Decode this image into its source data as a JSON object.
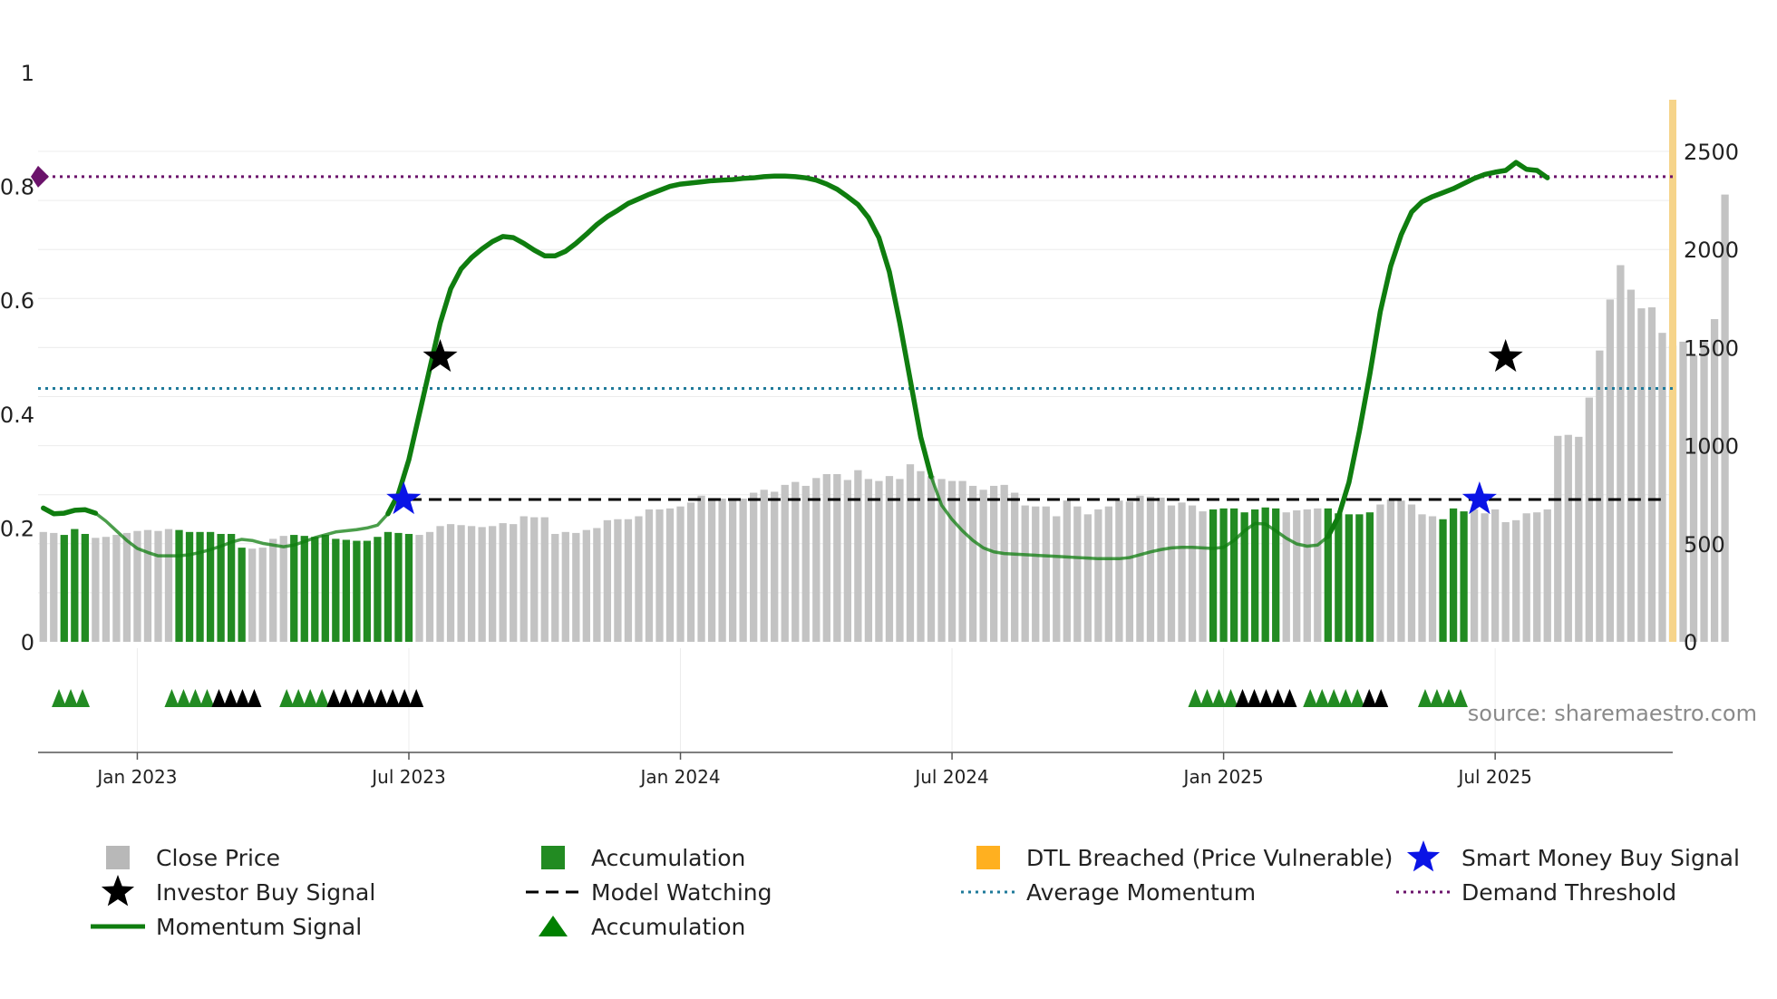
{
  "chart_data": {
    "type": "bar+line",
    "source": "source: sharemaestro.com",
    "left_axis": {
      "ylim": [
        0,
        1
      ],
      "ticks": [
        0,
        0.2,
        0.4,
        0.6,
        0.8,
        1
      ],
      "tick_labels": [
        "0",
        "0.2",
        "0.4",
        "0.6",
        "0.8",
        "1"
      ]
    },
    "right_axis": {
      "ylim": [
        0,
        2800
      ],
      "ticks": [
        0,
        500,
        1000,
        1500,
        2000,
        2500
      ],
      "tick_labels": [
        "0",
        "500",
        "1000",
        "1500",
        "2000",
        "2500"
      ]
    },
    "x_ticks": [
      {
        "label": "Jan 2023",
        "week": 9
      },
      {
        "label": "Jul 2023",
        "week": 35
      },
      {
        "label": "Jan 2024",
        "week": 61
      },
      {
        "label": "Jul 2024",
        "week": 87
      },
      {
        "label": "Jan 2025",
        "week": 113
      },
      {
        "label": "Jul 2025",
        "week": 139
      }
    ],
    "week_count": 156,
    "close_price": [
      560,
      555,
      545,
      575,
      550,
      530,
      535,
      545,
      555,
      565,
      570,
      565,
      575,
      570,
      560,
      560,
      560,
      550,
      550,
      480,
      475,
      480,
      525,
      540,
      545,
      540,
      535,
      545,
      525,
      520,
      515,
      515,
      535,
      560,
      555,
      550,
      545,
      560,
      590,
      600,
      595,
      590,
      585,
      590,
      605,
      600,
      640,
      635,
      635,
      550,
      560,
      555,
      570,
      580,
      620,
      625,
      625,
      640,
      675,
      675,
      680,
      690,
      710,
      745,
      725,
      730,
      720,
      730,
      760,
      775,
      765,
      800,
      815,
      795,
      835,
      855,
      855,
      825,
      875,
      830,
      820,
      845,
      830,
      905,
      870,
      845,
      830,
      820,
      820,
      795,
      775,
      795,
      800,
      760,
      695,
      690,
      690,
      640,
      720,
      690,
      650,
      675,
      690,
      720,
      715,
      745,
      740,
      735,
      695,
      710,
      695,
      665,
      675,
      680,
      680,
      660,
      675,
      685,
      680,
      660,
      670,
      675,
      680,
      680,
      655,
      650,
      650,
      660,
      700,
      725,
      720,
      700,
      650,
      640,
      625,
      680,
      665,
      675,
      655,
      675,
      610,
      620,
      655,
      660,
      675,
      1050,
      1055,
      1045,
      1245,
      1485,
      1745,
      1920,
      1795,
      1700,
      1705,
      1575,
      1510,
      1530,
      1460,
      1535,
      1645,
      2280
    ],
    "accumulation_bar_ranges": [
      [
        2,
        4
      ],
      [
        13,
        19
      ],
      [
        24,
        35
      ],
      [
        112,
        118
      ],
      [
        123,
        127
      ],
      [
        134,
        136
      ]
    ],
    "momentum": {
      "points": [
        [
          0,
          0.235
        ],
        [
          1,
          0.225
        ],
        [
          2,
          0.226
        ],
        [
          3,
          0.231
        ],
        [
          4,
          0.232
        ],
        [
          5,
          0.226
        ],
        [
          6,
          0.212
        ],
        [
          7,
          0.195
        ],
        [
          8,
          0.178
        ],
        [
          9,
          0.164
        ],
        [
          10,
          0.157
        ],
        [
          11,
          0.151
        ],
        [
          12,
          0.151
        ],
        [
          13,
          0.151
        ],
        [
          14,
          0.153
        ],
        [
          15,
          0.157
        ],
        [
          16,
          0.162
        ],
        [
          17,
          0.168
        ],
        [
          18,
          0.175
        ],
        [
          19,
          0.18
        ],
        [
          20,
          0.178
        ],
        [
          21,
          0.173
        ],
        [
          22,
          0.17
        ],
        [
          23,
          0.167
        ],
        [
          24,
          0.17
        ],
        [
          25,
          0.176
        ],
        [
          26,
          0.183
        ],
        [
          27,
          0.188
        ],
        [
          28,
          0.193
        ],
        [
          29,
          0.195
        ],
        [
          30,
          0.197
        ],
        [
          31,
          0.2
        ],
        [
          32,
          0.205
        ],
        [
          33,
          0.225
        ],
        [
          34,
          0.26
        ],
        [
          35,
          0.32
        ],
        [
          36,
          0.4
        ],
        [
          37,
          0.48
        ],
        [
          38,
          0.56
        ],
        [
          39,
          0.62
        ],
        [
          40,
          0.655
        ],
        [
          41,
          0.675
        ],
        [
          42,
          0.69
        ],
        [
          43,
          0.703
        ],
        [
          44,
          0.712
        ],
        [
          45,
          0.71
        ],
        [
          46,
          0.7
        ],
        [
          47,
          0.688
        ],
        [
          48,
          0.678
        ],
        [
          49,
          0.678
        ],
        [
          50,
          0.686
        ],
        [
          51,
          0.7
        ],
        [
          52,
          0.716
        ],
        [
          53,
          0.733
        ],
        [
          54,
          0.747
        ],
        [
          55,
          0.758
        ],
        [
          56,
          0.77
        ],
        [
          57,
          0.778
        ],
        [
          58,
          0.786
        ],
        [
          59,
          0.793
        ],
        [
          60,
          0.8
        ],
        [
          61,
          0.804
        ],
        [
          62,
          0.806
        ],
        [
          63,
          0.808
        ],
        [
          64,
          0.81
        ],
        [
          65,
          0.811
        ],
        [
          66,
          0.812
        ],
        [
          67,
          0.814
        ],
        [
          68,
          0.815
        ],
        [
          69,
          0.817
        ],
        [
          70,
          0.818
        ],
        [
          71,
          0.818
        ],
        [
          72,
          0.817
        ],
        [
          73,
          0.815
        ],
        [
          74,
          0.811
        ],
        [
          75,
          0.804
        ],
        [
          76,
          0.795
        ],
        [
          77,
          0.782
        ],
        [
          78,
          0.768
        ],
        [
          79,
          0.745
        ],
        [
          80,
          0.71
        ],
        [
          81,
          0.65
        ],
        [
          82,
          0.56
        ],
        [
          83,
          0.46
        ],
        [
          84,
          0.36
        ],
        [
          85,
          0.29
        ],
        [
          86,
          0.24
        ],
        [
          87,
          0.215
        ],
        [
          88,
          0.195
        ],
        [
          89,
          0.178
        ],
        [
          90,
          0.165
        ],
        [
          91,
          0.158
        ],
        [
          92,
          0.155
        ],
        [
          93,
          0.154
        ],
        [
          94,
          0.153
        ],
        [
          95,
          0.152
        ],
        [
          96,
          0.151
        ],
        [
          97,
          0.15
        ],
        [
          98,
          0.149
        ],
        [
          99,
          0.148
        ],
        [
          100,
          0.147
        ],
        [
          101,
          0.146
        ],
        [
          102,
          0.146
        ],
        [
          103,
          0.146
        ],
        [
          104,
          0.148
        ],
        [
          105,
          0.153
        ],
        [
          106,
          0.158
        ],
        [
          107,
          0.162
        ],
        [
          108,
          0.165
        ],
        [
          109,
          0.166
        ],
        [
          110,
          0.166
        ],
        [
          111,
          0.165
        ],
        [
          112,
          0.164
        ],
        [
          113,
          0.166
        ],
        [
          114,
          0.178
        ],
        [
          115,
          0.195
        ],
        [
          116,
          0.208
        ],
        [
          117,
          0.207
        ],
        [
          118,
          0.195
        ],
        [
          119,
          0.182
        ],
        [
          120,
          0.172
        ],
        [
          121,
          0.168
        ],
        [
          122,
          0.17
        ],
        [
          123,
          0.185
        ],
        [
          124,
          0.22
        ],
        [
          125,
          0.28
        ],
        [
          126,
          0.37
        ],
        [
          127,
          0.47
        ],
        [
          128,
          0.58
        ],
        [
          129,
          0.66
        ],
        [
          130,
          0.715
        ],
        [
          131,
          0.755
        ],
        [
          132,
          0.773
        ],
        [
          133,
          0.782
        ],
        [
          134,
          0.789
        ],
        [
          135,
          0.796
        ],
        [
          136,
          0.805
        ],
        [
          137,
          0.814
        ],
        [
          138,
          0.821
        ],
        [
          139,
          0.825
        ],
        [
          140,
          0.828
        ],
        [
          141,
          0.842
        ],
        [
          142,
          0.83
        ],
        [
          143,
          0.828
        ],
        [
          144,
          0.815
        ]
      ],
      "dim_ranges": [
        [
          5,
          34
        ],
        [
          85,
          124
        ]
      ]
    },
    "model_watching": {
      "y": 0.25,
      "x_ranges": [
        [
          35,
          125
        ],
        [
          125,
          155
        ]
      ]
    },
    "average_momentum": 0.445,
    "demand_threshold": 0.817,
    "investor_buy_signals": [
      {
        "week": 38,
        "y": 0.5
      },
      {
        "week": 140,
        "y": 0.5
      }
    ],
    "smart_money_buy_signals": [
      {
        "week": 34.5,
        "y": 0.25
      },
      {
        "week": 137.5,
        "y": 0.25
      }
    ],
    "dtl_breached_bar_week": 156,
    "triangle_groups": [
      {
        "start": 1.5,
        "green": 3,
        "black": 0
      },
      {
        "start": 12.3,
        "green": 4,
        "black": 4
      },
      {
        "start": 23.3,
        "green": 4,
        "black": 8
      },
      {
        "start": 110.3,
        "green": 4,
        "black": 5
      },
      {
        "start": 121.3,
        "green": 5,
        "black": 2
      },
      {
        "start": 132.3,
        "green": 4,
        "black": 0
      }
    ],
    "colors": {
      "close_price": "#c3c3c3",
      "accumulation": "#228b22",
      "dtl": "#f6d48a",
      "momentum": "#0f7d0f",
      "average_momentum": "#1f7a9a",
      "demand_threshold": "#6b136b",
      "smart_money": "#0a14e6",
      "investor": "#000000",
      "model_watching": "#000000"
    },
    "legend": [
      {
        "label": "Close Price",
        "symbol": "square",
        "color": "#b8b8b8"
      },
      {
        "label": "Accumulation",
        "symbol": "square",
        "color": "#228b22"
      },
      {
        "label": "DTL Breached (Price Vulnerable)",
        "symbol": "square",
        "color": "#ffb020"
      },
      {
        "label": "Smart Money Buy Signal",
        "symbol": "star",
        "color": "#0a14e6"
      },
      {
        "label": "Investor Buy Signal",
        "symbol": "star",
        "color": "#000000"
      },
      {
        "label": "Model Watching",
        "symbol": "dash",
        "color": "#000000"
      },
      {
        "label": "Average Momentum",
        "symbol": "dot",
        "color": "#1f7a9a"
      },
      {
        "label": "Demand Threshold",
        "symbol": "dot",
        "color": "#6b136b"
      },
      {
        "label": "Momentum Signal",
        "symbol": "line",
        "color": "#0f7d0f"
      },
      {
        "label": "Accumulation",
        "symbol": "triangle",
        "color": "#008000"
      }
    ]
  }
}
